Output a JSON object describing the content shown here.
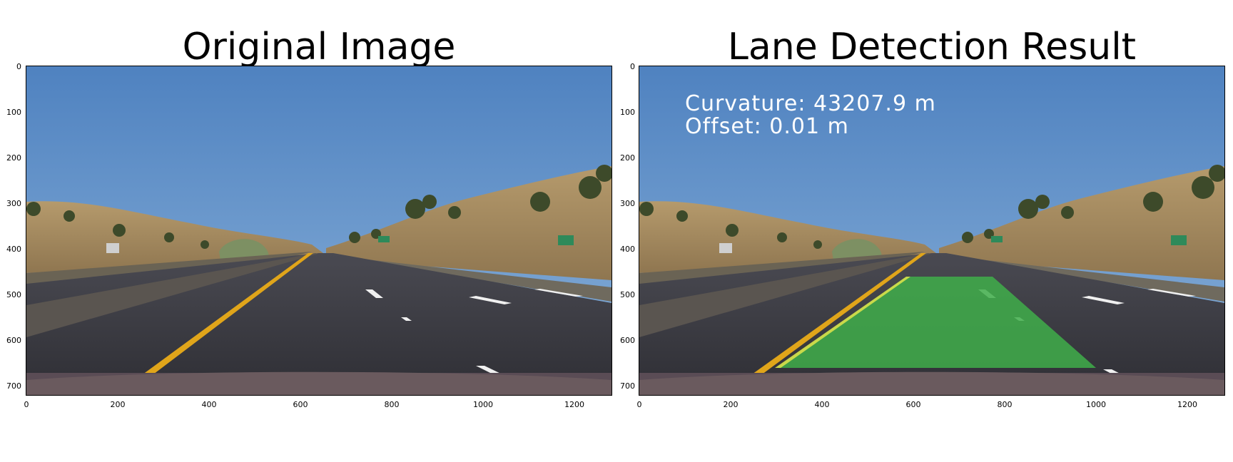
{
  "panels": [
    {
      "title": "Original Image"
    },
    {
      "title": "Lane Detection Result",
      "overlay": {
        "curvature": "Curvature: 43207.9 m",
        "offset": "Offset: 0.01 m"
      }
    }
  ],
  "axes": {
    "y_ticks": [
      "0",
      "100",
      "200",
      "300",
      "400",
      "500",
      "600",
      "700"
    ],
    "x_ticks": [
      "0",
      "200",
      "400",
      "600",
      "800",
      "1000",
      "1200"
    ]
  },
  "colors": {
    "lane_fill": "#3fae4a",
    "sky": "#5a8bc4",
    "road": "#3a3a40",
    "yellow_line": "#e0a51a"
  }
}
